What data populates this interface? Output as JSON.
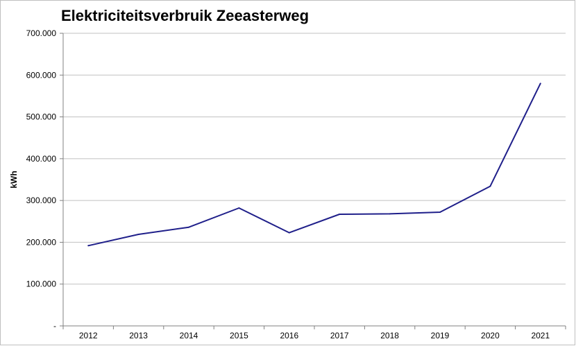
{
  "chart_data": {
    "type": "line",
    "title": "Elektriciteitsverbruik Zeeasterweg",
    "xlabel": "",
    "ylabel": "kWh",
    "categories": [
      "2012",
      "2013",
      "2014",
      "2015",
      "2016",
      "2017",
      "2018",
      "2019",
      "2020",
      "2021"
    ],
    "series": [
      {
        "color": "#1f1f8a",
        "values": [
          192000,
          219000,
          236000,
          282000,
          223000,
          267000,
          268000,
          272000,
          334000,
          580000
        ]
      }
    ],
    "ylim": [
      0,
      700000
    ],
    "yticks": [
      0,
      100000,
      200000,
      300000,
      400000,
      500000,
      600000,
      700000
    ],
    "ytick_labels": [
      "-",
      "100.000",
      "200.000",
      "300.000",
      "400.000",
      "500.000",
      "600.000",
      "700.000"
    ],
    "grid": true,
    "legend": "none"
  }
}
